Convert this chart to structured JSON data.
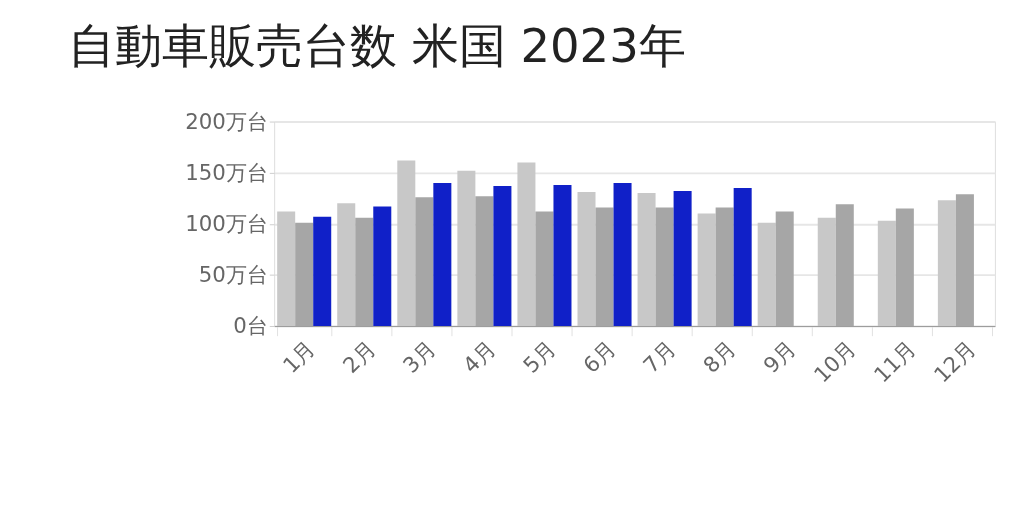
{
  "chart_data": {
    "type": "bar",
    "title": "自動車販売台数 米国 2023年",
    "categories": [
      "1月",
      "2月",
      "3月",
      "4月",
      "5月",
      "6月",
      "7月",
      "8月",
      "9月",
      "10月",
      "11月",
      "12月"
    ],
    "series": [
      {
        "color": "#c8c8c8",
        "values": [
          112,
          120,
          162,
          152,
          160,
          131,
          130,
          110,
          101,
          106,
          103,
          123
        ]
      },
      {
        "color": "#a6a6a6",
        "values": [
          101,
          106,
          126,
          127,
          112,
          116,
          116,
          116,
          112,
          119,
          115,
          129
        ]
      },
      {
        "color": "#1020c8",
        "values": [
          107,
          117,
          140,
          137,
          138,
          140,
          132,
          135,
          null,
          null,
          null,
          null
        ]
      }
    ],
    "ylim": [
      0,
      200
    ],
    "yticks": [
      {
        "value": 0,
        "label": "0台"
      },
      {
        "value": 50,
        "label": "50万台"
      },
      {
        "value": 100,
        "label": "100万台"
      },
      {
        "value": 150,
        "label": "150万台"
      },
      {
        "value": 200,
        "label": "200万台"
      }
    ],
    "grid": "y",
    "legend": false
  }
}
